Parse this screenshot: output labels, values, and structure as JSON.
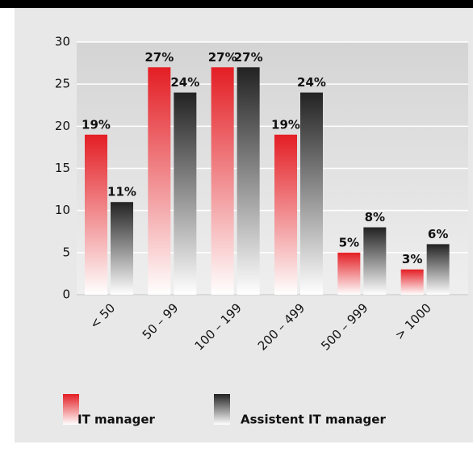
{
  "chart_data": {
    "type": "bar",
    "categories": [
      "< 50",
      "50 – 99",
      "100 – 199",
      "200 – 499",
      "500 – 999",
      "> 1000"
    ],
    "series": [
      {
        "name": "IT manager",
        "color": "#e31e24",
        "values": [
          19,
          27,
          27,
          19,
          5,
          3
        ],
        "value_labels": [
          "19%",
          "27%",
          "27%",
          "19%",
          "5%",
          "3%"
        ]
      },
      {
        "name": "Assistent IT manager",
        "color": "#222222",
        "values": [
          11,
          24,
          27,
          24,
          8,
          6
        ],
        "value_labels": [
          "11%",
          "24%",
          "27%",
          "24%",
          "8%",
          "6%"
        ]
      }
    ],
    "ylim": [
      0,
      30
    ],
    "yticks": [
      0,
      5,
      10,
      15,
      20,
      25,
      30
    ],
    "grid": true
  }
}
